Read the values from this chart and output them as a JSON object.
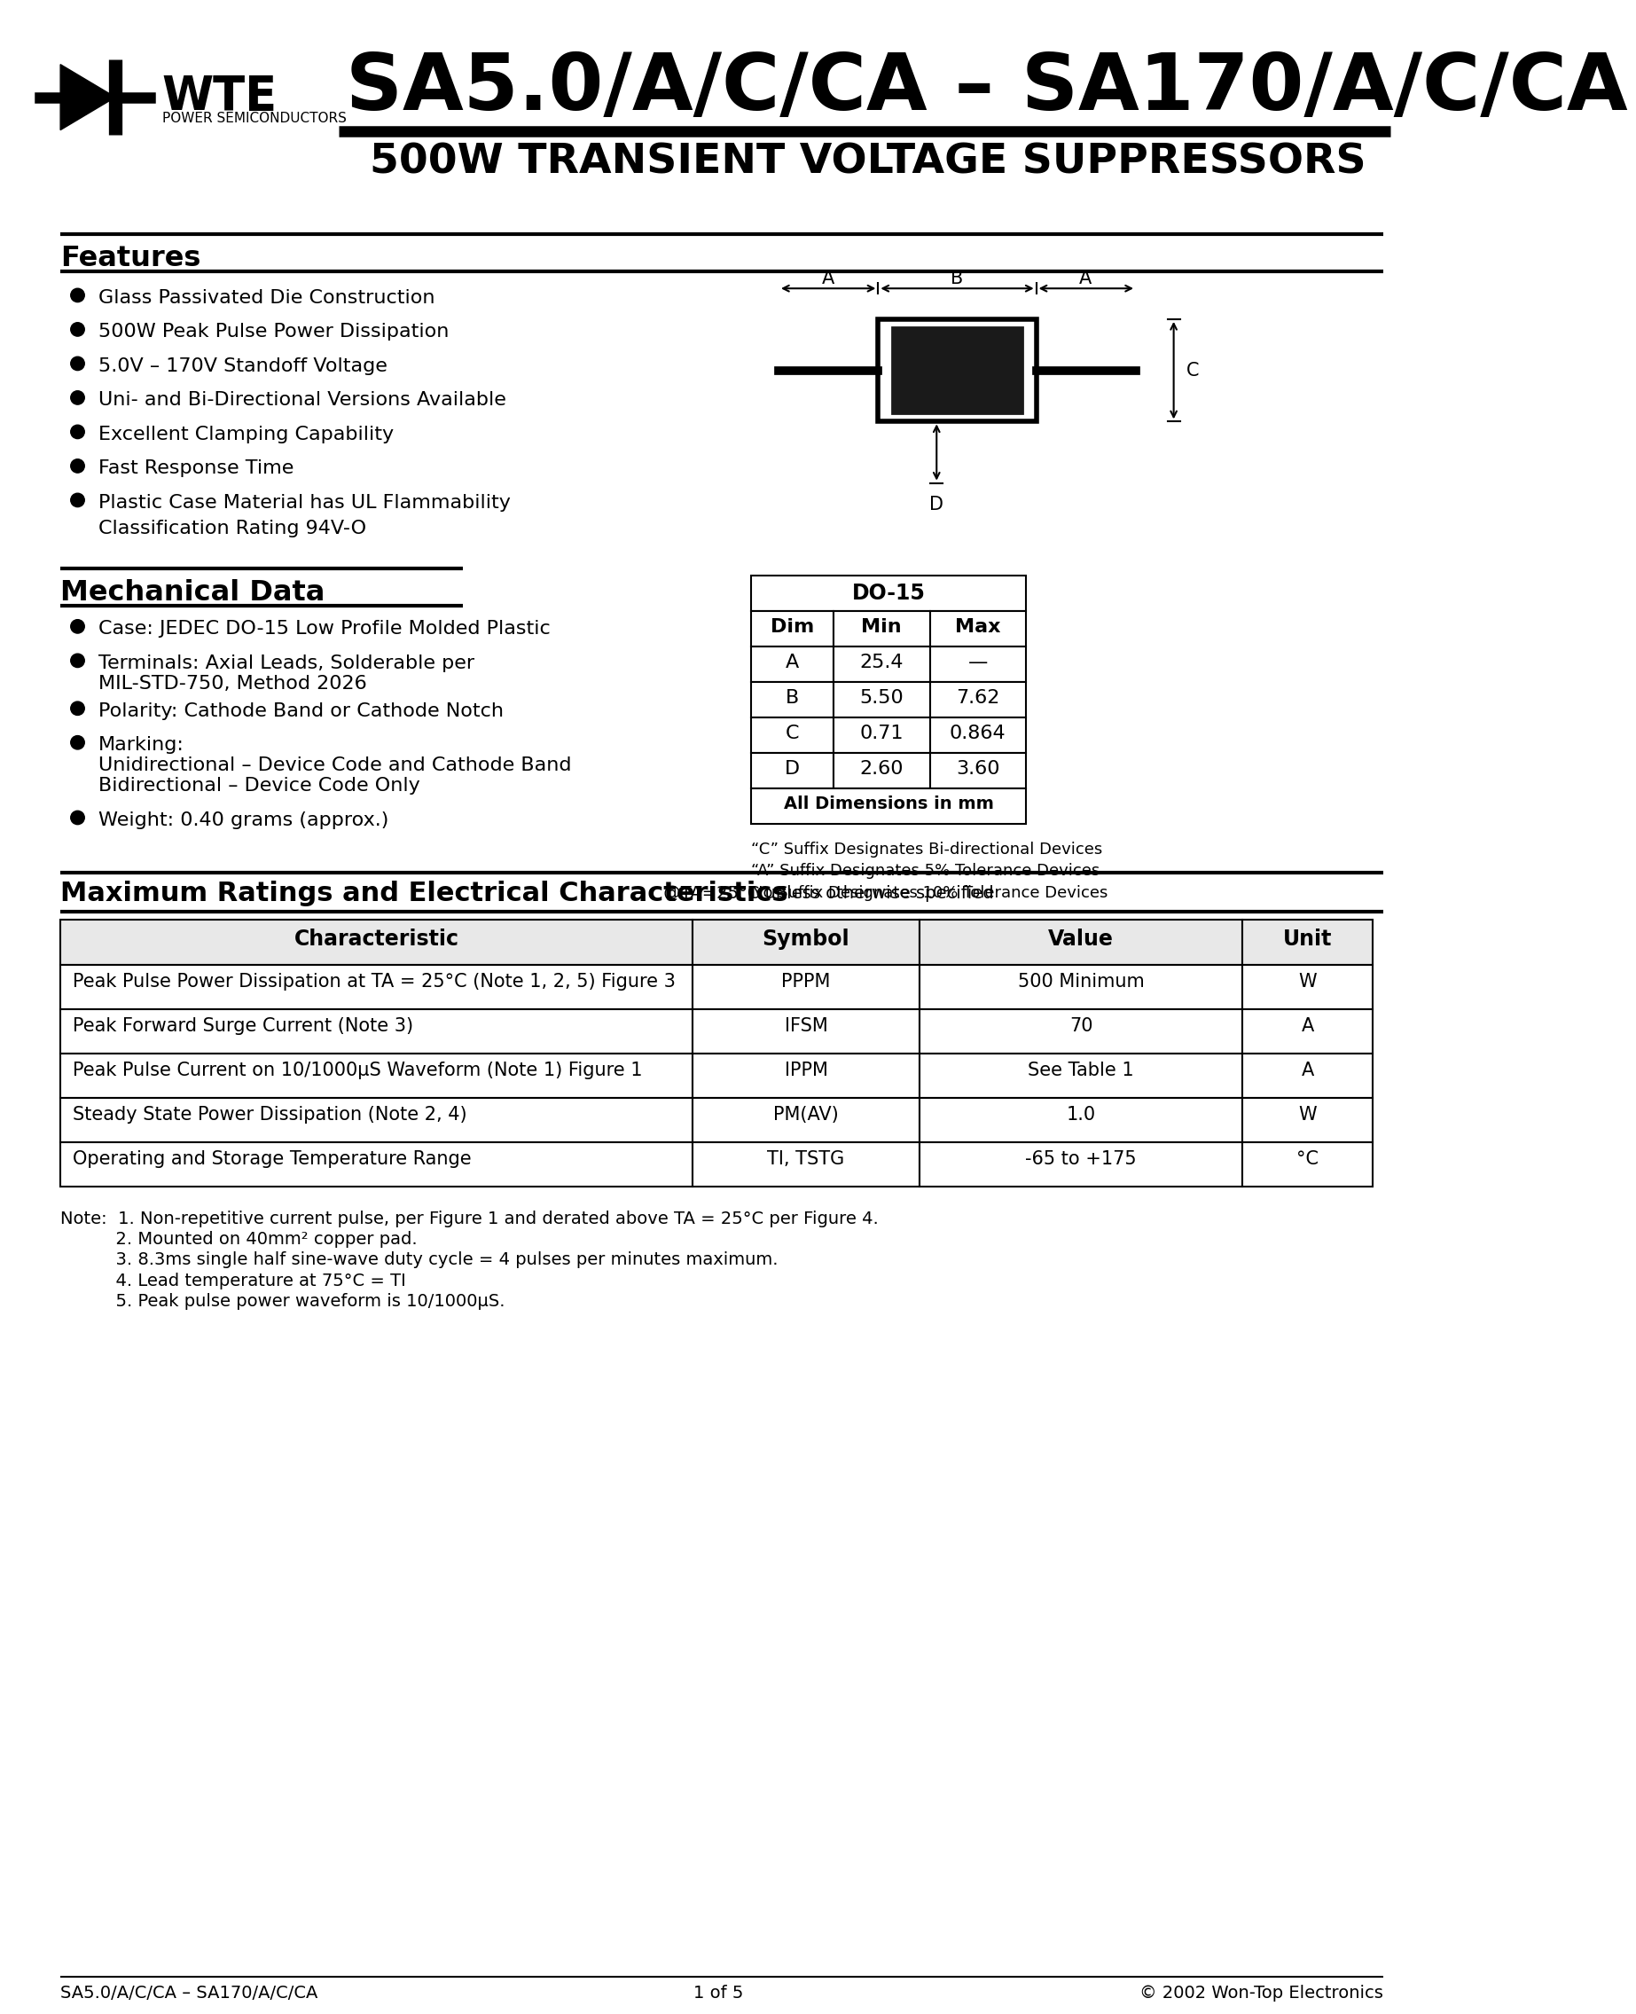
{
  "page_title": "SA5.0/A/C/CA – SA170/A/C/CA",
  "page_subtitle": "500W TRANSIENT VOLTAGE SUPPRESSORS",
  "company": "WTE",
  "company_sub": "POWER SEMICONDUCTORS",
  "features_title": "Features",
  "features": [
    "Glass Passivated Die Construction",
    "500W Peak Pulse Power Dissipation",
    "5.0V – 170V Standoff Voltage",
    "Uni- and Bi-Directional Versions Available",
    "Excellent Clamping Capability",
    "Fast Response Time",
    "Plastic Case Material has UL Flammability",
    "Classification Rating 94V-O"
  ],
  "mech_title": "Mechanical Data",
  "mech_items": [
    [
      "Case: JEDEC DO-15 Low Profile Molded Plastic"
    ],
    [
      "Terminals: Axial Leads, Solderable per",
      "MIL-STD-750, Method 2026"
    ],
    [
      "Polarity: Cathode Band or Cathode Notch"
    ],
    [
      "Marking:",
      "Unidirectional – Device Code and Cathode Band",
      "Bidirectional – Device Code Only"
    ],
    [
      "Weight: 0.40 grams (approx.)"
    ]
  ],
  "do15_title": "DO-15",
  "do15_headers": [
    "Dim",
    "Min",
    "Max"
  ],
  "do15_rows": [
    [
      "A",
      "25.4",
      "—"
    ],
    [
      "B",
      "5.50",
      "7.62"
    ],
    [
      "C",
      "0.71",
      "0.864"
    ],
    [
      "D",
      "2.60",
      "3.60"
    ]
  ],
  "do15_footer": "All Dimensions in mm",
  "suffix_notes": [
    "“C” Suffix Designates Bi-directional Devices",
    "“A” Suffix Designates 5% Tolerance Devices",
    "No Suffix Designates 10% Tolerance Devices"
  ],
  "max_ratings_title": "Maximum Ratings and Electrical Characteristics",
  "max_ratings_subtitle": "@TA=25°C unless otherwise specified",
  "table_headers": [
    "Characteristic",
    "Symbol",
    "Value",
    "Unit"
  ],
  "table_rows": [
    [
      "Peak Pulse Power Dissipation at TA = 25°C (Note 1, 2, 5) Figure 3",
      "PPPM",
      "500 Minimum",
      "W"
    ],
    [
      "Peak Forward Surge Current (Note 3)",
      "IFSM",
      "70",
      "A"
    ],
    [
      "Peak Pulse Current on 10/1000μS Waveform (Note 1) Figure 1",
      "IPPM",
      "See Table 1",
      "A"
    ],
    [
      "Steady State Power Dissipation (Note 2, 4)",
      "PM(AV)",
      "1.0",
      "W"
    ],
    [
      "Operating and Storage Temperature Range",
      "TI, TSTG",
      "-65 to +175",
      "°C"
    ]
  ],
  "notes": [
    "Note:  1. Non-repetitive current pulse, per Figure 1 and derated above TA = 25°C per Figure 4.",
    "          2. Mounted on 40mm² copper pad.",
    "          3. 8.3ms single half sine-wave duty cycle = 4 pulses per minutes maximum.",
    "          4. Lead temperature at 75°C = TI",
    "          5. Peak pulse power waveform is 10/1000μS."
  ],
  "footer_left": "SA5.0/A/C/CA – SA170/A/C/CA",
  "footer_center": "1 of 5",
  "footer_right": "© 2002 Won-Top Electronics",
  "bg_color": "#ffffff",
  "text_color": "#000000"
}
